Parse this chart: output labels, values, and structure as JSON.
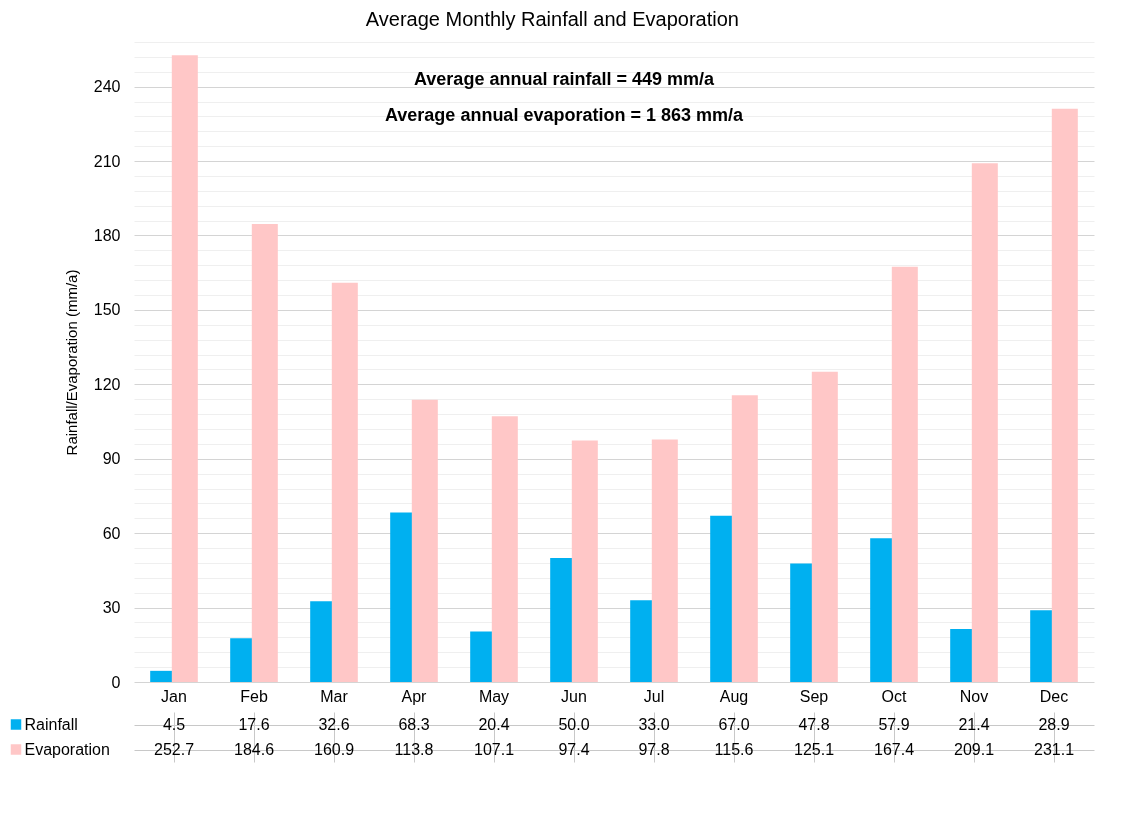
{
  "chart_data": {
    "type": "bar",
    "title": "Average Monthly Rainfall and Evaporation",
    "ylabel": "Rainfall/Evaporation (mm/a)",
    "annotations": [
      "Average annual rainfall = 449 mm/a",
      "Average annual evaporation =  1 863 mm/a"
    ],
    "categories": [
      "Jan",
      "Feb",
      "Mar",
      "Apr",
      "May",
      "Jun",
      "Jul",
      "Aug",
      "Sep",
      "Oct",
      "Nov",
      "Dec"
    ],
    "series": [
      {
        "name": "Rainfall",
        "color": "#00b0f0",
        "values": [
          4.5,
          17.6,
          32.6,
          68.3,
          20.4,
          50.0,
          33.0,
          67.0,
          47.8,
          57.9,
          21.4,
          28.9
        ],
        "value_labels": [
          "4.5",
          "17.6",
          "32.6",
          "68.3",
          "20.4",
          "50.0",
          "33.0",
          "67.0",
          "47.8",
          "57.9",
          "21.4",
          "28.9"
        ]
      },
      {
        "name": "Evaporation",
        "color": "#ffc7c7",
        "values": [
          252.7,
          184.6,
          160.9,
          113.8,
          107.1,
          97.4,
          97.8,
          115.6,
          125.1,
          167.4,
          209.1,
          231.1
        ],
        "value_labels": [
          "252.7",
          "184.6",
          "160.9",
          "113.8",
          "107.1",
          "97.4",
          "97.8",
          "115.6",
          "125.1",
          "167.4",
          "209.1",
          "231.1"
        ]
      }
    ],
    "ylim": [
      0,
      258
    ],
    "yticks": [
      0,
      {
        "value": 6,
        "label": null
      },
      {
        "value": 12,
        "label": null
      },
      {
        "value": 18,
        "label": null
      },
      {
        "value": 24,
        "label": null
      },
      30,
      {
        "value": 36,
        "label": null
      },
      {
        "value": 42,
        "label": null
      },
      {
        "value": 48,
        "label": null
      },
      {
        "value": 54,
        "label": null
      },
      60,
      {
        "value": 66,
        "label": null
      },
      {
        "value": 72,
        "label": null
      },
      {
        "value": 78,
        "label": null
      },
      {
        "value": 84,
        "label": null
      },
      90,
      {
        "value": 96,
        "label": null
      },
      {
        "value": 102,
        "label": null
      },
      {
        "value": 108,
        "label": null
      },
      {
        "value": 114,
        "label": null
      },
      120,
      {
        "value": 126,
        "label": null
      },
      {
        "value": 132,
        "label": null
      },
      {
        "value": 138,
        "label": null
      },
      {
        "value": 144,
        "label": null
      },
      150,
      {
        "value": 156,
        "label": null
      },
      {
        "value": 162,
        "label": null
      },
      {
        "value": 168,
        "label": null
      },
      {
        "value": 174,
        "label": null
      },
      180,
      {
        "value": 186,
        "label": null
      },
      {
        "value": 192,
        "label": null
      },
      {
        "value": 198,
        "label": null
      },
      {
        "value": 204,
        "label": null
      },
      210,
      {
        "value": 216,
        "label": null
      },
      {
        "value": 222,
        "label": null
      },
      {
        "value": 228,
        "label": null
      },
      {
        "value": 234,
        "label": null
      },
      240,
      {
        "value": 246,
        "label": null
      },
      {
        "value": 252,
        "label": null
      },
      {
        "value": 258,
        "label": null
      }
    ],
    "grid": "y",
    "legend": "bottom"
  }
}
